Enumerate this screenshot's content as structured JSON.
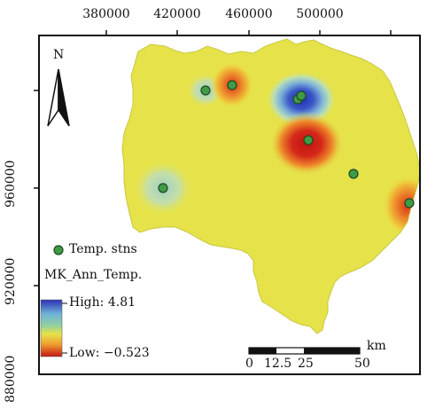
{
  "map": {
    "top_ticks": [
      "380000",
      "420000",
      "460000",
      "500000"
    ],
    "left_ticks": [
      "960000",
      "920000",
      "880000"
    ],
    "north_label": "N",
    "stations_legend": "Temp. stns",
    "layer_title": "MK_Ann_Temp.",
    "high_label": "High: 4.81",
    "low_label": "Low: −0.523",
    "scale_ticks": [
      "0",
      "12.5",
      "25",
      "50"
    ],
    "scale_unit": "km",
    "colors": {
      "land": "#e6e34a",
      "high": "#2c2fb4",
      "low": "#cc1b14",
      "station_fill": "#3f9b46",
      "station_stroke": "#1d4a20"
    }
  }
}
